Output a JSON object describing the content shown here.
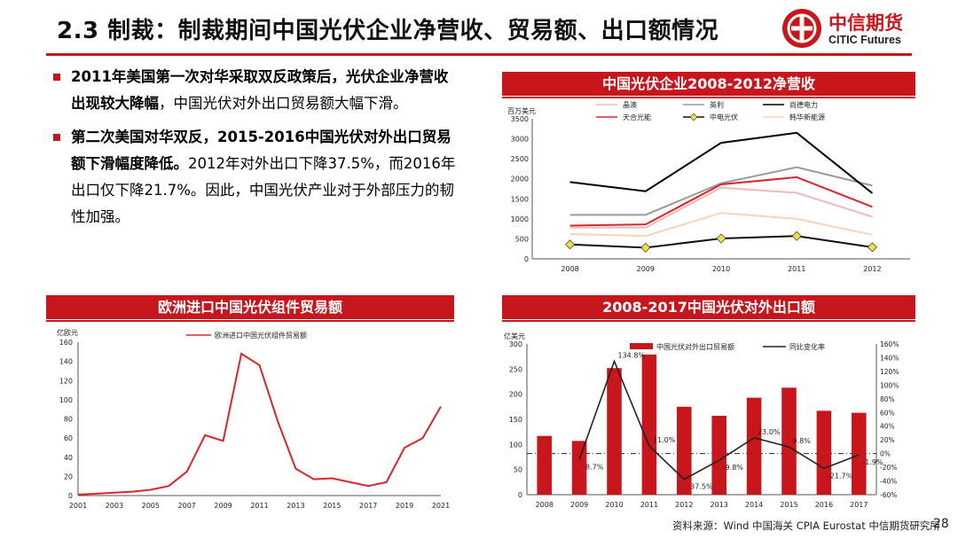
{
  "header": {
    "title": "2.3 制裁：制裁期间中国光伏企业净营收、贸易额、出口额情况",
    "logo_cn": "中信期货",
    "logo_en": "CITIC Futures"
  },
  "bullets": [
    {
      "bold": "2011年美国第一次对华采取双反政策后，光伏企业净营收出现较大降幅",
      "normal": "，中国光伏对外出口贸易额大幅下滑。"
    },
    {
      "bold": "第二次美国对华双反，2015-2016中国光伏对外出口贸易额下滑幅度降低。",
      "normal": "2012年对外出口下降37.5%，而2016年出口仅下降21.7%。因此，中国光伏产业对于外部压力的韧性加强。"
    }
  ],
  "footer": {
    "source": "资料来源：Wind 中国海关 CPIA Eurostat 中信期货研究所",
    "page": "28"
  },
  "chart_data": [
    {
      "type": "line",
      "title": "中国光伏企业2008-2012净营收",
      "ylabel": "百万美元",
      "x": [
        "2008",
        "2009",
        "2010",
        "2011",
        "2012"
      ],
      "ylim": [
        0,
        3500
      ],
      "yticks": [
        0,
        500,
        1000,
        1500,
        2000,
        2500,
        3000,
        3500
      ],
      "series": [
        {
          "name": "晶澳",
          "color": "#f2b8b8",
          "values": [
            780,
            780,
            1780,
            1650,
            1050
          ]
        },
        {
          "name": "英利",
          "color": "#9a9a9a",
          "values": [
            1100,
            1100,
            1890,
            2290,
            1830
          ]
        },
        {
          "name": "尚德电力",
          "color": "#000000",
          "values": [
            1920,
            1690,
            2900,
            3150,
            1640
          ]
        },
        {
          "name": "天合光能",
          "color": "#d9262c",
          "values": [
            830,
            860,
            1860,
            2040,
            1300
          ]
        },
        {
          "name": "中电光伏",
          "color": "#111111",
          "marker": "#f0e040",
          "values": [
            360,
            280,
            510,
            570,
            290
          ]
        },
        {
          "name": "韩华新能源",
          "color": "#f7d2bd",
          "values": [
            620,
            570,
            1150,
            1000,
            600
          ]
        }
      ]
    },
    {
      "type": "line",
      "title": "欧洲进口中国光伏组件贸易额",
      "ylabel": "亿欧元",
      "legend": "欧洲进口中国光伏组件贸易额",
      "x": [
        2001,
        2002,
        2003,
        2004,
        2005,
        2006,
        2007,
        2008,
        2009,
        2010,
        2011,
        2012,
        2013,
        2014,
        2015,
        2016,
        2017,
        2018,
        2019,
        2020,
        2021
      ],
      "xticks": [
        "2001",
        "2003",
        "2005",
        "2007",
        "2009",
        "2011",
        "2013",
        "2015",
        "2017",
        "2019",
        "2021"
      ],
      "values": [
        1,
        2,
        3,
        4,
        6,
        10,
        25,
        63,
        57,
        148,
        136,
        78,
        28,
        17,
        18,
        14,
        10,
        14,
        50,
        60,
        93
      ],
      "ylim": [
        0,
        160
      ],
      "yticks": [
        0,
        20,
        40,
        60,
        80,
        100,
        120,
        140,
        160
      ],
      "color": "#d9262c"
    },
    {
      "type": "bar",
      "title": "2008-2017中国光伏对外出口额",
      "ylabel": "亿美元",
      "categories": [
        "2008",
        "2009",
        "2010",
        "2011",
        "2012",
        "2013",
        "2014",
        "2015",
        "2016",
        "2017"
      ],
      "series": [
        {
          "name": "中国光伏对外出口贸易额",
          "color": "#c8161d",
          "values": [
            117,
            107,
            252,
            279,
            175,
            157,
            193,
            213,
            167,
            163
          ]
        },
        {
          "name": "同比变化率",
          "color": "#222222",
          "values": [
            null,
            -8.7,
            134.8,
            11.0,
            -37.5,
            -9.8,
            23.0,
            9.8,
            -21.7,
            -1.9
          ]
        }
      ],
      "ylim": [
        0,
        300
      ],
      "yticks": [
        0,
        50,
        100,
        150,
        200,
        250,
        300
      ],
      "y2lim": [
        -60,
        160
      ],
      "y2ticks": [
        "160%",
        "140%",
        "120%",
        "100%",
        "80%",
        "60%",
        "40%",
        "20%",
        "0%",
        "-20%",
        "-40%",
        "-60%"
      ],
      "labels": [
        "-8.7%",
        "134.8%",
        "11.0%",
        "-37.5%",
        "-9.8%",
        "23.0%",
        "9.8%",
        "-21.7%",
        "-1.9%"
      ]
    }
  ]
}
